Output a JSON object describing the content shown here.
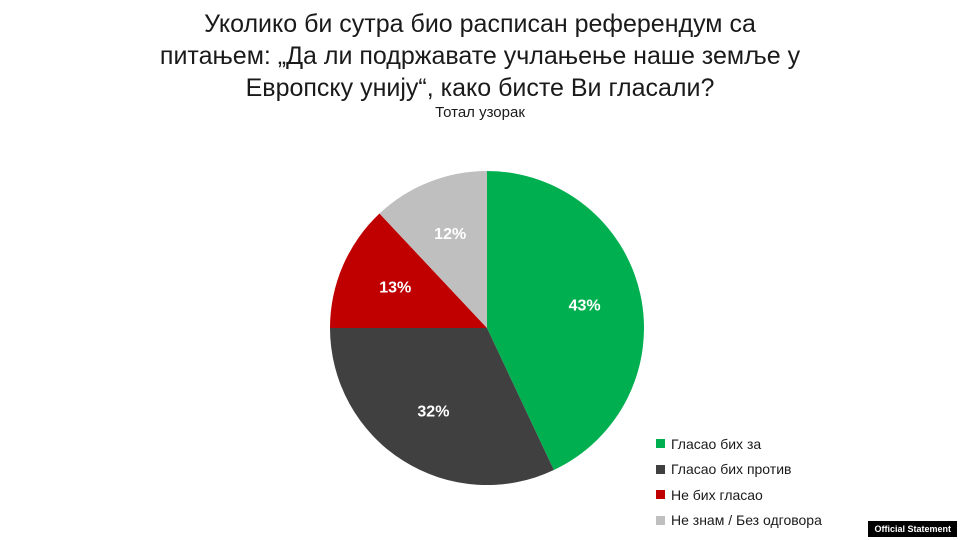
{
  "chart_data": {
    "type": "pie",
    "title_lines": [
      "Уколико би сутра био расписан референдум са",
      "питањем: „Да ли подржавате учлањење наше земље у",
      "Европску унију“, како бисте Ви гласали?"
    ],
    "subtitle": "Тотал узорак",
    "slices": [
      {
        "label": "Гласао бих за",
        "value": 43,
        "display": "43%",
        "color": "#00b050",
        "label_color": "#ffffff"
      },
      {
        "label": "Гласао бих против",
        "value": 32,
        "display": "32%",
        "color": "#404040",
        "label_color": "#ffffff"
      },
      {
        "label": "Не бих гласао",
        "value": 13,
        "display": "13%",
        "color": "#c00000",
        "label_color": "#ffffff"
      },
      {
        "label": "Не знам / Без одговора",
        "value": 12,
        "display": "12%",
        "color": "#bfbfbf",
        "label_color": "#ffffff"
      }
    ],
    "start": "12 o'clock",
    "direction": "clockwise",
    "legend_position": "bottom-right"
  },
  "badge": "Official Statement"
}
